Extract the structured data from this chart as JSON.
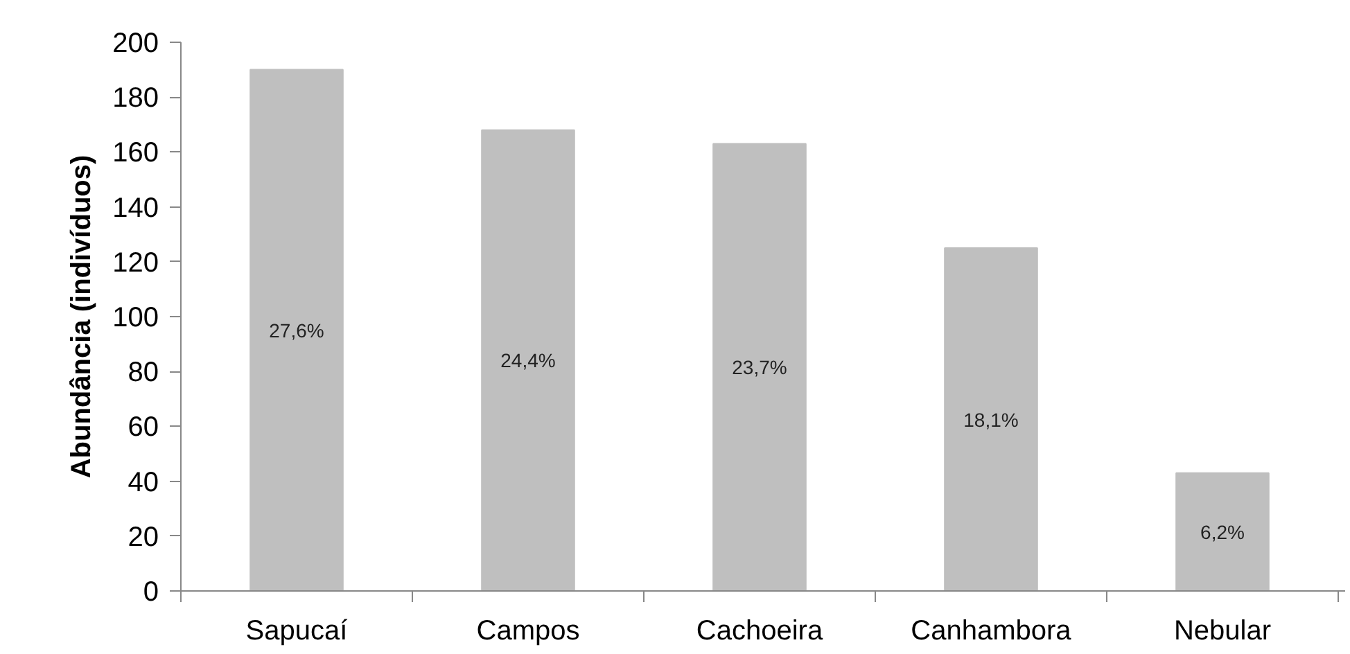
{
  "chart_data": {
    "type": "bar",
    "ylabel": "Abundância (indivíduos)",
    "categories": [
      "Sapucaí",
      "Campos",
      "Cachoeira",
      "Canhambora",
      "Nebular"
    ],
    "values": [
      190,
      168,
      163,
      125,
      43
    ],
    "annotations": [
      "27,6%",
      "24,4%",
      "23,7%",
      "18,1%",
      "6,2%"
    ],
    "color": "#bfbfbf",
    "ylim": [
      0,
      200
    ],
    "yticks": [
      0,
      20,
      40,
      60,
      80,
      100,
      120,
      140,
      160,
      180,
      200
    ],
    "grid": false
  }
}
